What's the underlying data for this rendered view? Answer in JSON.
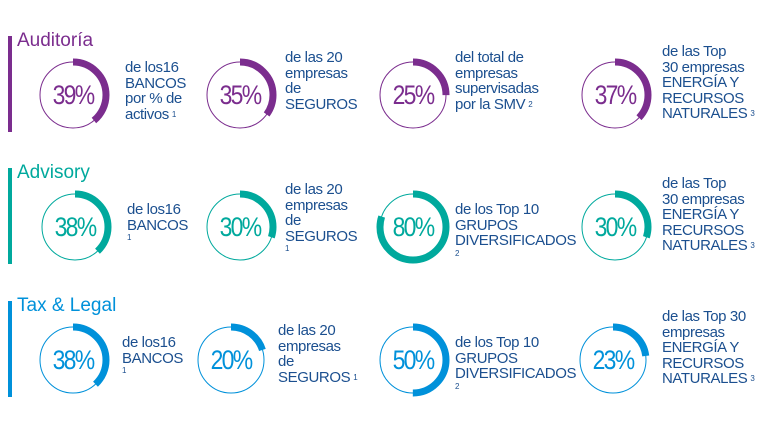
{
  "sections": [
    {
      "title": "Auditoría",
      "color": "#7b2d8e",
      "items": [
        {
          "percent": 39,
          "label": "39%",
          "lines": [
            "de los16",
            "BANCOS",
            "por % de",
            "activos"
          ],
          "note": "1",
          "note_own_line": false
        },
        {
          "percent": 35,
          "label": "35%",
          "lines": [
            "de las 20",
            "empresas",
            "de",
            "SEGUROS"
          ],
          "note": "",
          "note_own_line": false
        },
        {
          "percent": 25,
          "label": "25%",
          "lines": [
            "del total de",
            "empresas",
            "supervisadas",
            "por la SMV"
          ],
          "note": "2",
          "note_own_line": false
        },
        {
          "percent": 37,
          "label": "37%",
          "lines": [
            "de las Top",
            "30 empresas",
            "ENERGÍA Y",
            "RECURSOS",
            "NATURALES"
          ],
          "note": "3",
          "note_own_line": false
        }
      ]
    },
    {
      "title": "Advisory",
      "color": "#00a99d",
      "items": [
        {
          "percent": 38,
          "label": "38%",
          "lines": [
            "de los16",
            "BANCOS"
          ],
          "note": "1",
          "note_own_line": true
        },
        {
          "percent": 30,
          "label": "30%",
          "lines": [
            "de las 20",
            "empresas",
            "de",
            "SEGUROS"
          ],
          "note": "1",
          "note_own_line": true
        },
        {
          "percent": 80,
          "label": "80%",
          "lines": [
            "de los Top 10",
            "GRUPOS",
            "DIVERSIFICADOS"
          ],
          "note": "2",
          "note_own_line": true
        },
        {
          "percent": 30,
          "label": "30%",
          "lines": [
            "de las Top",
            "30 empresas",
            "ENERGÍA Y",
            "RECURSOS",
            "NATURALES"
          ],
          "note": "3",
          "note_own_line": false
        }
      ]
    },
    {
      "title": "Tax & Legal",
      "color": "#0091da",
      "items": [
        {
          "percent": 38,
          "label": "38%",
          "lines": [
            "de los16",
            "BANCOS"
          ],
          "note": "1",
          "note_own_line": true
        },
        {
          "percent": 20,
          "label": "20%",
          "lines": [
            "de las 20",
            "empresas",
            "de",
            "SEGUROS"
          ],
          "note": "1",
          "note_own_line": false
        },
        {
          "percent": 50,
          "label": "50%",
          "lines": [
            "de los Top 10",
            "GRUPOS",
            "DIVERSIFICADOS"
          ],
          "note": "2",
          "note_own_line": true
        },
        {
          "percent": 23,
          "label": "23%",
          "lines": [
            "de las Top 30",
            "empresas",
            "ENERGÍA Y",
            "RECURSOS",
            "NATURALES"
          ],
          "note": "3",
          "note_own_line": false
        }
      ]
    }
  ]
}
